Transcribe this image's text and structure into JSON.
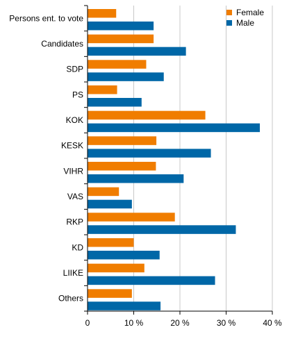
{
  "chart_data": {
    "type": "bar",
    "orientation": "horizontal",
    "categories": [
      "Persons ent. to vote",
      "Candidates",
      "SDP",
      "PS",
      "KOK",
      "KESK",
      "VIHR",
      "VAS",
      "RKP",
      "KD",
      "LIIKE",
      "Others"
    ],
    "series": [
      {
        "name": "Female",
        "color": "#f07d00",
        "values": [
          6.2,
          14.3,
          12.7,
          6.4,
          25.5,
          14.9,
          14.8,
          6.8,
          18.9,
          10.0,
          12.3,
          9.6
        ]
      },
      {
        "name": "Male",
        "color": "#0067a7",
        "values": [
          14.3,
          21.3,
          16.5,
          11.7,
          37.3,
          26.7,
          20.8,
          9.6,
          32.1,
          15.6,
          27.6,
          15.8
        ]
      }
    ],
    "x_ticks": [
      "0",
      "10 %",
      "20 %",
      "30 %",
      "40 %"
    ],
    "xlim": [
      0,
      40
    ],
    "grid": true,
    "legend_position": "top-right"
  }
}
